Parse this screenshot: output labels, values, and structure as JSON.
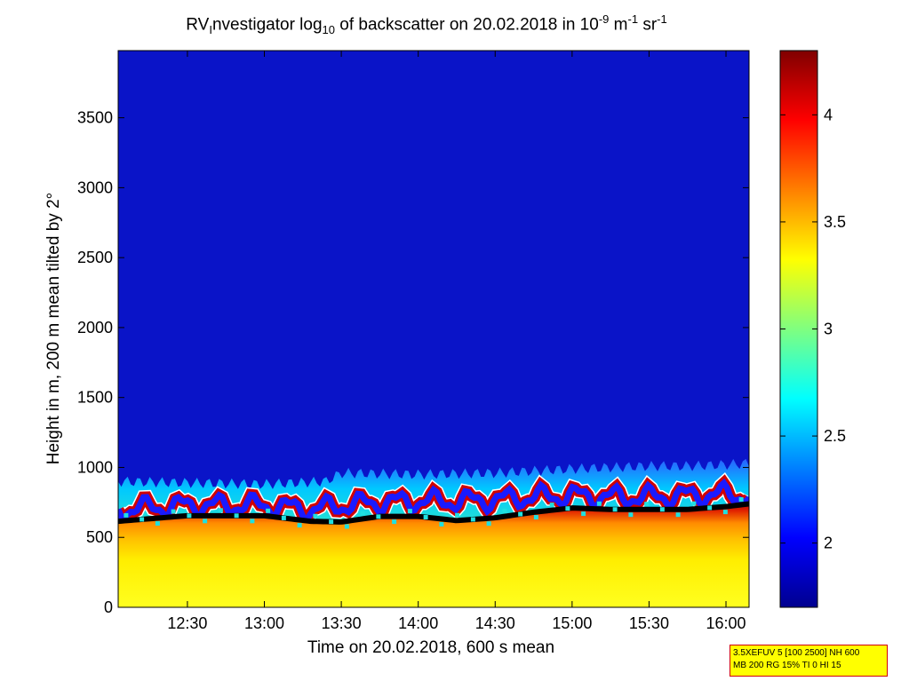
{
  "title": {
    "text_before_sub": "RV",
    "sub1": "I",
    "text_between": "nvestigator log",
    "sub2": "10",
    "text_after_sub": " of backscatter on 20.02.2018 in 10",
    "sup1": "-9",
    "unit_m": " m",
    "sup2": "-1",
    "unit_sr": " sr",
    "sup3": "-1"
  },
  "info_box": {
    "line1": "3.5XEFUV 5 [100 2500] NH 600",
    "line2": "MB 200 RG 15% TI 0 HI 15"
  },
  "chart_data": {
    "type": "heatmap",
    "title": "RVInvestigator log10 of backscatter on 20.02.2018 in 10-9 m-1 sr-1",
    "xlabel": "Time on 20.02.2018, 600 s mean",
    "ylabel": "Height in m, 200 m mean tilted by 2°",
    "x_range_hours": [
      12.05,
      16.15
    ],
    "ylim": [
      0,
      3980
    ],
    "x_ticks": [
      {
        "value": 12.5,
        "label": "12:30"
      },
      {
        "value": 13.0,
        "label": "13:00"
      },
      {
        "value": 13.5,
        "label": "13:30"
      },
      {
        "value": 14.0,
        "label": "14:00"
      },
      {
        "value": 14.5,
        "label": "14:30"
      },
      {
        "value": 15.0,
        "label": "15:00"
      },
      {
        "value": 15.5,
        "label": "15:30"
      },
      {
        "value": 16.0,
        "label": "16:00"
      }
    ],
    "y_ticks": [
      {
        "value": 0,
        "label": "0"
      },
      {
        "value": 500,
        "label": "500"
      },
      {
        "value": 1000,
        "label": "1000"
      },
      {
        "value": 1500,
        "label": "1500"
      },
      {
        "value": 2000,
        "label": "2000"
      },
      {
        "value": 2500,
        "label": "2500"
      },
      {
        "value": 3000,
        "label": "3000"
      },
      {
        "value": 3500,
        "label": "3500"
      }
    ],
    "colorbar": {
      "range": [
        1.7,
        4.3
      ],
      "colormap": "jet",
      "ticks": [
        {
          "value": 2,
          "label": "2"
        },
        {
          "value": 2.5,
          "label": "2.5"
        },
        {
          "value": 3,
          "label": "3"
        },
        {
          "value": 3.5,
          "label": "3.5"
        },
        {
          "value": 4,
          "label": "4"
        }
      ]
    },
    "layers": {
      "boundary_layer_top_m": [
        [
          12.05,
          615
        ],
        [
          12.5,
          655
        ],
        [
          13.0,
          655
        ],
        [
          13.3,
          615
        ],
        [
          13.5,
          610
        ],
        [
          13.75,
          650
        ],
        [
          14.0,
          650
        ],
        [
          14.25,
          620
        ],
        [
          14.5,
          640
        ],
        [
          14.75,
          680
        ],
        [
          15.0,
          710
        ],
        [
          15.25,
          700
        ],
        [
          15.5,
          700
        ],
        [
          15.75,
          700
        ],
        [
          16.0,
          720
        ],
        [
          16.15,
          740
        ]
      ],
      "aerosol_layer_top_m": [
        [
          12.05,
          900
        ],
        [
          12.5,
          890
        ],
        [
          13.0,
          880
        ],
        [
          13.4,
          900
        ],
        [
          13.5,
          960
        ],
        [
          14.0,
          950
        ],
        [
          14.5,
          960
        ],
        [
          15.0,
          990
        ],
        [
          15.5,
          1010
        ],
        [
          15.75,
          1010
        ],
        [
          16.0,
          1020
        ],
        [
          16.15,
          1030
        ]
      ],
      "cloud_top_m": [
        [
          12.05,
          700
        ],
        [
          12.5,
          730
        ],
        [
          13.0,
          730
        ],
        [
          13.3,
          700
        ],
        [
          13.5,
          730
        ],
        [
          13.75,
          750
        ],
        [
          14.0,
          760
        ],
        [
          14.25,
          760
        ],
        [
          14.5,
          770
        ],
        [
          14.75,
          790
        ],
        [
          15.0,
          800
        ],
        [
          15.25,
          790
        ],
        [
          15.5,
          790
        ],
        [
          15.75,
          800
        ],
        [
          16.0,
          810
        ],
        [
          16.15,
          800
        ]
      ]
    }
  }
}
